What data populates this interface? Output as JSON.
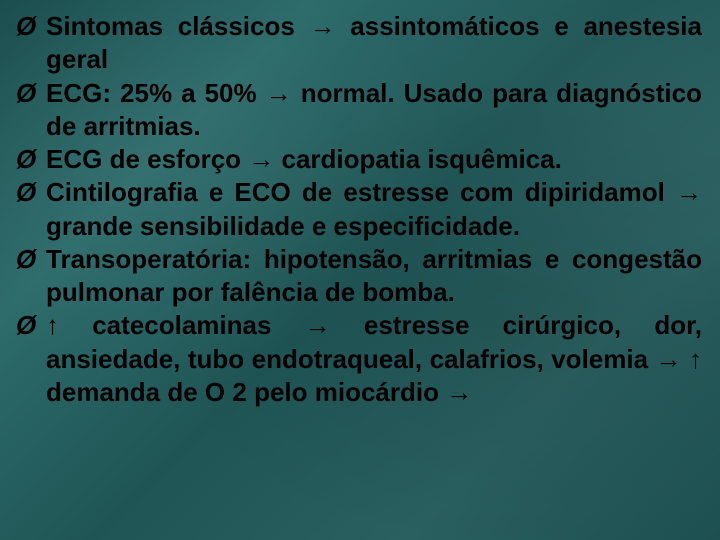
{
  "slide": {
    "background_colors": [
      "#1a4d4d",
      "#2d6b6b",
      "#1f5555",
      "#2a6060",
      "#1d5050"
    ],
    "text_color": "#000000",
    "font_family": "Arial",
    "font_size_pt": 20,
    "font_weight": "bold",
    "bullet_glyph": "Ø",
    "text_align": "justify",
    "items": [
      "Sintomas clássicos → assintomáticos e anestesia geral",
      " ECG: 25% a 50% → normal. Usado para diagnóstico de arritmias.",
      " ECG de esforço → cardiopatia isquêmica.",
      " Cintilografia e ECO de estresse com dipiridamol → grande sensibilidade e especificidade.",
      " Transoperatória: hipotensão, arritmias e congestão pulmonar por falência de bomba.",
      " ↑ catecolaminas → estresse cirúrgico, dor, ansiedade, tubo endotraqueal, calafrios, volemia → ↑ demanda de O 2 pelo miocárdio →"
    ]
  }
}
